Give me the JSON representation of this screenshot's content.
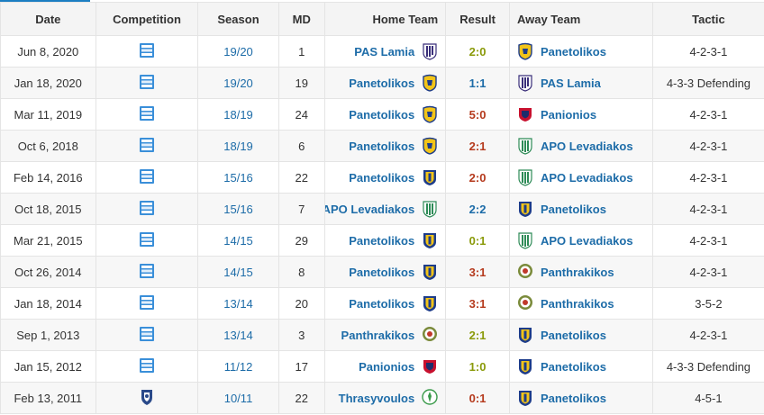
{
  "headers": {
    "date": "Date",
    "competition": "Competition",
    "season": "Season",
    "md": "MD",
    "home": "Home Team",
    "result": "Result",
    "away": "Away Team",
    "tactic": "Tactic"
  },
  "colors": {
    "link": "#1d6ca8",
    "result_red": "#b53a1d",
    "result_olive": "#8a9a0a",
    "accent": "#1b7ec2"
  },
  "rows": [
    {
      "date": "Jun 8, 2020",
      "comp_icon": "superleague-icon",
      "season": "19/20",
      "md": "1",
      "home": "PAS Lamia",
      "home_crest": "pas-lamia-crest",
      "result": "2:0",
      "result_style": "draw",
      "away": "Panetolikos",
      "away_crest": "panetolikos-crest",
      "tactic": "4-2-3-1"
    },
    {
      "date": "Jan 18, 2020",
      "comp_icon": "superleague-icon",
      "season": "19/20",
      "md": "19",
      "home": "Panetolikos",
      "home_crest": "panetolikos-crest",
      "result": "1:1",
      "result_style": "link",
      "away": "PAS Lamia",
      "away_crest": "pas-lamia-crest",
      "tactic": "4-3-3 Defending"
    },
    {
      "date": "Mar 11, 2019",
      "comp_icon": "superleague-icon",
      "season": "18/19",
      "md": "24",
      "home": "Panetolikos",
      "home_crest": "panetolikos-crest",
      "result": "5:0",
      "result_style": "win",
      "away": "Panionios",
      "away_crest": "panionios-crest",
      "tactic": "4-2-3-1"
    },
    {
      "date": "Oct 6, 2018",
      "comp_icon": "superleague-icon",
      "season": "18/19",
      "md": "6",
      "home": "Panetolikos",
      "home_crest": "panetolikos-crest",
      "result": "2:1",
      "result_style": "win",
      "away": "APO Levadiakos",
      "away_crest": "levadiakos-crest",
      "tactic": "4-2-3-1"
    },
    {
      "date": "Feb 14, 2016",
      "comp_icon": "superleague-icon",
      "season": "15/16",
      "md": "22",
      "home": "Panetolikos",
      "home_crest": "panetolikos-old-crest",
      "result": "2:0",
      "result_style": "win",
      "away": "APO Levadiakos",
      "away_crest": "levadiakos-crest",
      "tactic": "4-2-3-1"
    },
    {
      "date": "Oct 18, 2015",
      "comp_icon": "superleague-icon",
      "season": "15/16",
      "md": "7",
      "home": "APO Levadiakos",
      "home_crest": "levadiakos-crest",
      "result": "2:2",
      "result_style": "link",
      "away": "Panetolikos",
      "away_crest": "panetolikos-old-crest",
      "tactic": "4-2-3-1"
    },
    {
      "date": "Mar 21, 2015",
      "comp_icon": "superleague-icon",
      "season": "14/15",
      "md": "29",
      "home": "Panetolikos",
      "home_crest": "panetolikos-old-crest",
      "result": "0:1",
      "result_style": "draw",
      "away": "APO Levadiakos",
      "away_crest": "levadiakos-crest",
      "tactic": "4-2-3-1"
    },
    {
      "date": "Oct 26, 2014",
      "comp_icon": "superleague-icon",
      "season": "14/15",
      "md": "8",
      "home": "Panetolikos",
      "home_crest": "panetolikos-old-crest",
      "result": "3:1",
      "result_style": "win",
      "away": "Panthrakikos",
      "away_crest": "panthrakikos-crest",
      "tactic": "4-2-3-1"
    },
    {
      "date": "Jan 18, 2014",
      "comp_icon": "superleague-icon",
      "season": "13/14",
      "md": "20",
      "home": "Panetolikos",
      "home_crest": "panetolikos-old-crest",
      "result": "3:1",
      "result_style": "win",
      "away": "Panthrakikos",
      "away_crest": "panthrakikos-crest",
      "tactic": "3-5-2"
    },
    {
      "date": "Sep 1, 2013",
      "comp_icon": "superleague-icon",
      "season": "13/14",
      "md": "3",
      "home": "Panthrakikos",
      "home_crest": "panthrakikos-crest",
      "result": "2:1",
      "result_style": "draw",
      "away": "Panetolikos",
      "away_crest": "panetolikos-old-crest",
      "tactic": "4-2-3-1"
    },
    {
      "date": "Jan 15, 2012",
      "comp_icon": "superleague-icon",
      "season": "11/12",
      "md": "17",
      "home": "Panionios",
      "home_crest": "panionios-crest",
      "result": "1:0",
      "result_style": "draw",
      "away": "Panetolikos",
      "away_crest": "panetolikos-old-crest",
      "tactic": "4-3-3 Defending"
    },
    {
      "date": "Feb 13, 2011",
      "comp_icon": "football-league-icon",
      "season": "10/11",
      "md": "22",
      "home": "Thrasyvoulos",
      "home_crest": "thrasyvoulos-crest",
      "result": "0:1",
      "result_style": "win",
      "away": "Panetolikos",
      "away_crest": "panetolikos-old-crest",
      "tactic": "4-5-1"
    }
  ]
}
